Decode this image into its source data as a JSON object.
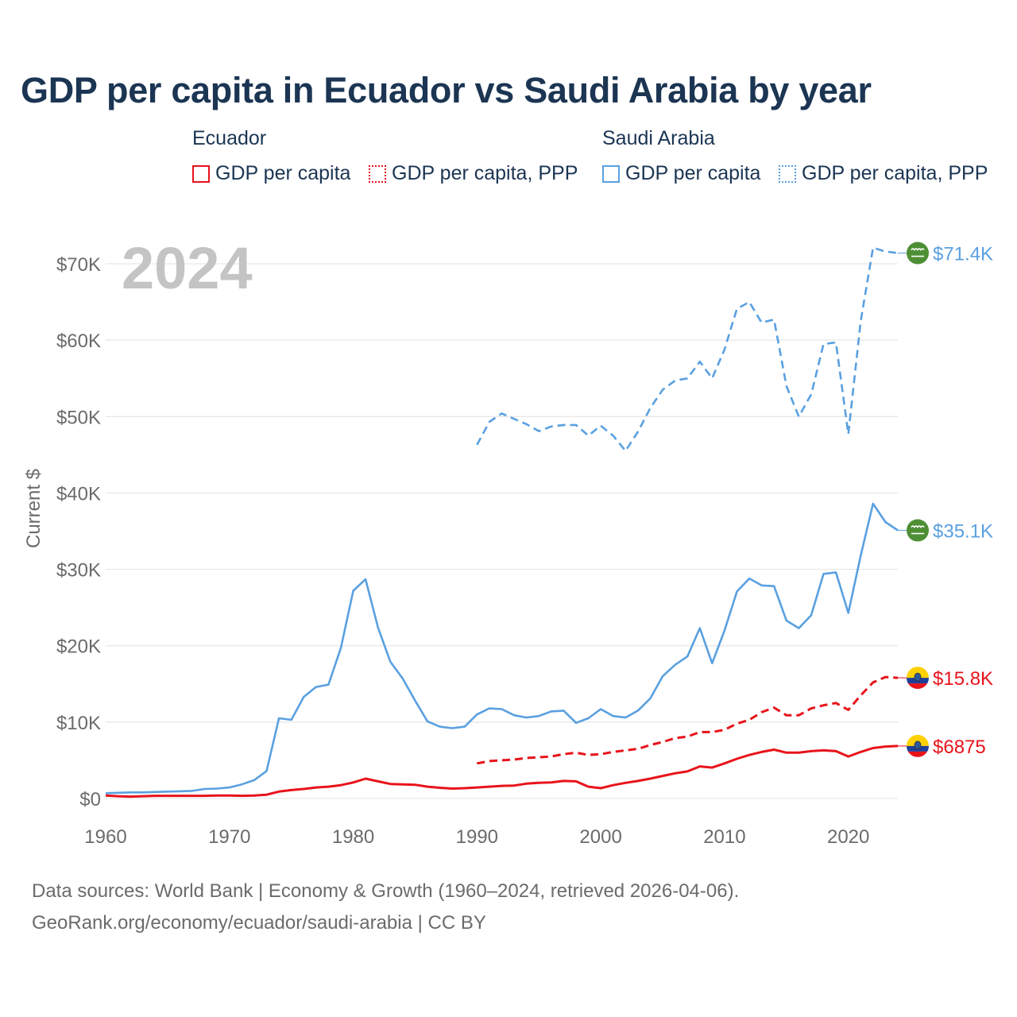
{
  "title": "GDP per capita in Ecuador vs Saudi Arabia by year",
  "legend": {
    "groups": [
      {
        "name": "Ecuador",
        "items": [
          "GDP per capita",
          "GDP per capita, PPP"
        ]
      },
      {
        "name": "Saudi Arabia",
        "items": [
          "GDP per capita",
          "GDP per capita, PPP"
        ]
      }
    ]
  },
  "footer": {
    "line1": "Data sources: World Bank | Economy & Growth (1960–2024, retrieved 2026-04-06).",
    "line2": "GeoRank.org/economy/ecuador/saudi-arabia | CC BY"
  },
  "chart_data": {
    "type": "line",
    "title": "GDP per capita in Ecuador vs Saudi Arabia by year",
    "year_label": "2024",
    "xlabel": "",
    "ylabel": "Current $",
    "xlim": [
      1960,
      2024
    ],
    "ylim": [
      0,
      70000
    ],
    "x_ticks": [
      1960,
      1970,
      1980,
      1990,
      2000,
      2010,
      2020
    ],
    "y_ticks": [
      {
        "value": 0,
        "label": "$0"
      },
      {
        "value": 10000,
        "label": "$10K"
      },
      {
        "value": 20000,
        "label": "$20K"
      },
      {
        "value": 30000,
        "label": "$30K"
      },
      {
        "value": 40000,
        "label": "$40K"
      },
      {
        "value": 50000,
        "label": "$50K"
      },
      {
        "value": 60000,
        "label": "$60K"
      },
      {
        "value": 70000,
        "label": "$70K"
      }
    ],
    "colors": {
      "ecuador": "#e8131b",
      "saudi": "#5aa0e0",
      "grid": "#e6e6e6",
      "axis_text": "#6b6b6b",
      "year_watermark": "#c4c4c4"
    },
    "series": [
      {
        "name": "Saudi Arabia GDP per capita, PPP",
        "country": "saudi",
        "style": "dashed",
        "end_label": "$71.4K",
        "flag": "saudi",
        "x": [
          1990,
          1991,
          1992,
          1993,
          1994,
          1995,
          1996,
          1997,
          1998,
          1999,
          2000,
          2001,
          2002,
          2003,
          2004,
          2005,
          2006,
          2007,
          2008,
          2009,
          2010,
          2011,
          2012,
          2013,
          2014,
          2015,
          2016,
          2017,
          2018,
          2019,
          2020,
          2021,
          2022,
          2023,
          2024
        ],
        "values": [
          46300,
          49300,
          50400,
          49700,
          49000,
          48100,
          48700,
          48900,
          48900,
          47500,
          48800,
          47500,
          45500,
          48000,
          51100,
          53500,
          54700,
          55000,
          57200,
          55000,
          58800,
          64100,
          65000,
          62300,
          62700,
          54000,
          50000,
          52900,
          59500,
          59700,
          47700,
          62500,
          72100,
          71600,
          71400
        ]
      },
      {
        "name": "Saudi Arabia GDP per capita",
        "country": "saudi",
        "style": "solid",
        "end_label": "$35.1K",
        "flag": "saudi",
        "x": [
          1960,
          1961,
          1962,
          1963,
          1964,
          1965,
          1966,
          1967,
          1968,
          1969,
          1970,
          1971,
          1972,
          1973,
          1974,
          1975,
          1976,
          1977,
          1978,
          1979,
          1980,
          1981,
          1982,
          1983,
          1984,
          1985,
          1986,
          1987,
          1988,
          1989,
          1990,
          1991,
          1992,
          1993,
          1994,
          1995,
          1996,
          1997,
          1998,
          1999,
          2000,
          2001,
          2002,
          2003,
          2004,
          2005,
          2006,
          2007,
          2008,
          2009,
          2010,
          2011,
          2012,
          2013,
          2014,
          2015,
          2016,
          2017,
          2018,
          2019,
          2020,
          2021,
          2022,
          2023,
          2024
        ],
        "values": [
          700,
          750,
          800,
          800,
          850,
          900,
          950,
          1000,
          1250,
          1300,
          1450,
          1850,
          2400,
          3600,
          10500,
          10300,
          13300,
          14600,
          14900,
          19700,
          27200,
          28700,
          22400,
          17900,
          15700,
          12800,
          10100,
          9400,
          9200,
          9400,
          11000,
          11800,
          11700,
          10900,
          10600,
          10800,
          11400,
          11500,
          9900,
          10500,
          11700,
          10800,
          10600,
          11500,
          13100,
          16000,
          17500,
          18600,
          22300,
          17700,
          22000,
          27100,
          28800,
          27900,
          27800,
          23300,
          22300,
          24000,
          29400,
          29600,
          24300,
          31800,
          38600,
          36200,
          35100
        ]
      },
      {
        "name": "Ecuador GDP per capita, PPP",
        "country": "ecuador",
        "style": "dashed",
        "end_label": "$15.8K",
        "flag": "ecuador",
        "x": [
          1990,
          1991,
          1992,
          1993,
          1994,
          1995,
          1996,
          1997,
          1998,
          1999,
          2000,
          2001,
          2002,
          2003,
          2004,
          2005,
          2006,
          2007,
          2008,
          2009,
          2010,
          2011,
          2012,
          2013,
          2014,
          2015,
          2016,
          2017,
          2018,
          2019,
          2020,
          2021,
          2022,
          2023,
          2024
        ],
        "values": [
          4600,
          4900,
          5000,
          5100,
          5300,
          5400,
          5500,
          5800,
          6000,
          5700,
          5800,
          6100,
          6300,
          6500,
          7000,
          7400,
          7900,
          8100,
          8700,
          8700,
          9000,
          9800,
          10300,
          11300,
          11900,
          10900,
          10900,
          11800,
          12200,
          12500,
          11600,
          13500,
          15200,
          15900,
          15800
        ]
      },
      {
        "name": "Ecuador GDP per capita",
        "country": "ecuador",
        "style": "solid",
        "end_label": "$6875",
        "flag": "ecuador",
        "x": [
          1960,
          1961,
          1962,
          1963,
          1964,
          1965,
          1966,
          1967,
          1968,
          1969,
          1970,
          1971,
          1972,
          1973,
          1974,
          1975,
          1976,
          1977,
          1978,
          1979,
          1980,
          1981,
          1982,
          1983,
          1984,
          1985,
          1986,
          1987,
          1988,
          1989,
          1990,
          1991,
          1992,
          1993,
          1994,
          1995,
          1996,
          1997,
          1998,
          1999,
          2000,
          2001,
          2002,
          2003,
          2004,
          2005,
          2006,
          2007,
          2008,
          2009,
          2010,
          2011,
          2012,
          2013,
          2014,
          2015,
          2016,
          2017,
          2018,
          2019,
          2020,
          2021,
          2022,
          2023,
          2024
        ],
        "values": [
          400,
          300,
          250,
          300,
          350,
          350,
          350,
          350,
          350,
          400,
          400,
          350,
          380,
          500,
          900,
          1100,
          1250,
          1450,
          1550,
          1750,
          2100,
          2600,
          2250,
          1900,
          1850,
          1800,
          1550,
          1400,
          1300,
          1350,
          1450,
          1550,
          1650,
          1700,
          1950,
          2050,
          2100,
          2300,
          2250,
          1550,
          1350,
          1750,
          2050,
          2300,
          2600,
          2950,
          3300,
          3550,
          4200,
          4050,
          4600,
          5200,
          5700,
          6100,
          6400,
          6000,
          6000,
          6200,
          6300,
          6200,
          5500,
          6100,
          6600,
          6800,
          6875
        ]
      }
    ]
  }
}
